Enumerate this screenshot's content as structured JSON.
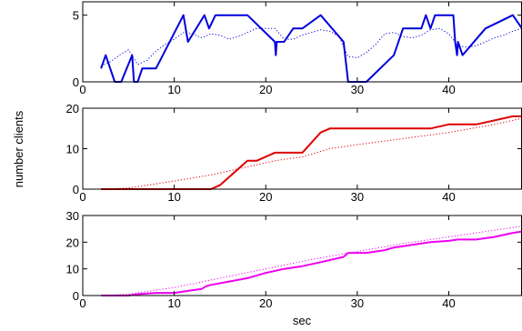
{
  "chart_data": [
    {
      "type": "line",
      "xlim": [
        0,
        48
      ],
      "ylim": [
        0,
        6
      ],
      "yticks": [
        0,
        5
      ],
      "xticks": [
        0,
        10,
        20,
        30,
        40
      ],
      "grid": false,
      "xlabel": "",
      "ylabel": "",
      "series": [
        {
          "style": "solid",
          "color": "#0000dd",
          "x": [
            2,
            2.5,
            3.5,
            4.2,
            5.4,
            5.6,
            6,
            6.5,
            8,
            11,
            11.5,
            13.3,
            13.8,
            14.5,
            18,
            21,
            21.1,
            21.2,
            22,
            23,
            24,
            26,
            28.5,
            29,
            29.1,
            31,
            34,
            35,
            36,
            37,
            37.5,
            38,
            38.5,
            40.5,
            40.7,
            40.9,
            41,
            41.5,
            44,
            47,
            48
          ],
          "y": [
            1,
            2,
            0,
            0,
            2,
            0,
            0,
            1,
            1,
            5,
            3,
            5,
            4,
            5,
            5,
            3,
            2,
            3,
            3,
            4,
            4,
            5,
            3,
            0,
            0,
            0,
            2,
            4,
            4,
            4,
            5,
            4,
            5,
            5,
            3,
            2,
            3,
            2,
            4,
            5,
            4
          ]
        },
        {
          "style": "dotted",
          "color": "#0000dd",
          "x": [
            2,
            3,
            4,
            5,
            6,
            7,
            8,
            9,
            10,
            11,
            12,
            13,
            14,
            15,
            16,
            17,
            18,
            19,
            20,
            21,
            22,
            23,
            24,
            25,
            26,
            27,
            28,
            29,
            30,
            31,
            32,
            33,
            34,
            35,
            36,
            37,
            38,
            39,
            40,
            41,
            42,
            43,
            44,
            45,
            46,
            47,
            48
          ],
          "y": [
            1.2,
            1.5,
            2.0,
            2.4,
            1.3,
            1.6,
            2.3,
            2.8,
            3.2,
            3.7,
            3.6,
            3.3,
            3.6,
            3.5,
            3.2,
            3.4,
            3.7,
            4.0,
            4.0,
            4.0,
            3.2,
            3.2,
            3.5,
            3.7,
            3.9,
            3.8,
            3.4,
            1.9,
            1.8,
            2.2,
            2.8,
            3.6,
            3.7,
            3.4,
            3.3,
            3.5,
            3.9,
            4.0,
            3.6,
            2.7,
            2.6,
            2.7,
            3.0,
            3.3,
            3.5,
            3.8,
            4.0
          ]
        }
      ]
    },
    {
      "type": "line",
      "xlim": [
        0,
        48
      ],
      "ylim": [
        0,
        20
      ],
      "yticks": [
        0,
        10,
        20
      ],
      "xticks": [
        0,
        10,
        20,
        30,
        40
      ],
      "grid": false,
      "xlabel": "",
      "ylabel": "number clients",
      "series": [
        {
          "style": "solid",
          "color": "#dd0000",
          "x": [
            2,
            14,
            15,
            18,
            19,
            21,
            24,
            26,
            27,
            30,
            35,
            38,
            40,
            43,
            47,
            48
          ],
          "y": [
            0,
            0,
            1,
            7,
            7,
            9,
            9,
            14,
            15,
            15,
            15,
            15,
            16,
            16,
            18,
            18
          ]
        },
        {
          "style": "dotted",
          "color": "#dd0000",
          "x": [
            2,
            5,
            10,
            14,
            18,
            21,
            24,
            27,
            30,
            35,
            40,
            45,
            48
          ],
          "y": [
            0,
            0.3,
            2,
            3.5,
            5.5,
            7,
            8,
            10,
            11,
            12.5,
            14,
            16,
            17.5
          ]
        }
      ]
    },
    {
      "type": "line",
      "xlim": [
        0,
        48
      ],
      "ylim": [
        0,
        30
      ],
      "yticks": [
        0,
        10,
        20,
        30
      ],
      "xticks": [
        0,
        10,
        20,
        30,
        40
      ],
      "grid": false,
      "xlabel": "sec",
      "ylabel": "",
      "series": [
        {
          "style": "solid",
          "color": "#ee00ee",
          "x": [
            2,
            5,
            6,
            8,
            10,
            12,
            13,
            13.5,
            14,
            18,
            20,
            22,
            24,
            26,
            28.5,
            29,
            31,
            33,
            34,
            36,
            38,
            40,
            41,
            43,
            45,
            47,
            48
          ],
          "y": [
            0,
            0,
            0.5,
            1,
            1,
            2,
            2.5,
            3.5,
            4,
            6.5,
            8.5,
            10,
            11,
            12.5,
            14.5,
            16,
            16,
            17,
            18,
            19,
            20,
            20.5,
            21,
            21,
            22,
            23.5,
            24
          ]
        },
        {
          "style": "dotted",
          "color": "#ee00ee",
          "x": [
            2,
            5,
            10,
            15,
            20,
            25,
            30,
            35,
            40,
            45,
            48
          ],
          "y": [
            0,
            0.5,
            3,
            6.5,
            10,
            13.5,
            16.5,
            19.5,
            22,
            24.5,
            26
          ]
        }
      ]
    }
  ]
}
